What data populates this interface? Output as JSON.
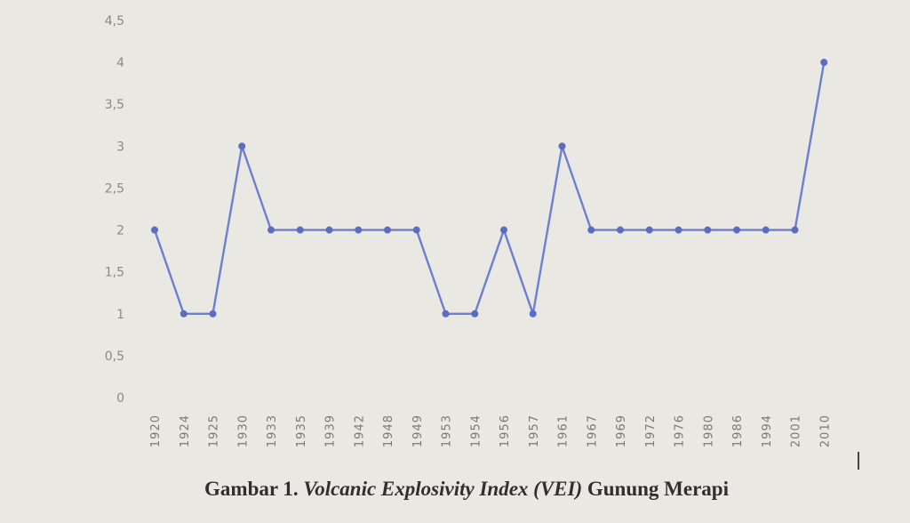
{
  "caption": {
    "prefix": "Gambar 1.",
    "italic": "Volcanic Explosivity Index (VEI)",
    "suffix": "Gunung Merapi"
  },
  "chart_data": {
    "type": "line",
    "title": "",
    "xlabel": "",
    "ylabel": "",
    "ylim": [
      0,
      4.5
    ],
    "yticks": [
      "0",
      "0,5",
      "1",
      "1,5",
      "2",
      "2,5",
      "3",
      "3,5",
      "4",
      "4,5"
    ],
    "yticks_values": [
      0,
      0.5,
      1,
      1.5,
      2,
      2.5,
      3,
      3.5,
      4,
      4.5
    ],
    "categories": [
      "1920",
      "1924",
      "1925",
      "1930",
      "1933",
      "1935",
      "1939",
      "1942",
      "1948",
      "1949",
      "1953",
      "1954",
      "1956",
      "1957",
      "1961",
      "1967",
      "1969",
      "1972",
      "1976",
      "1980",
      "1986",
      "1994",
      "2001",
      "2010"
    ],
    "values": [
      2,
      1,
      1,
      3,
      2,
      2,
      2,
      2,
      2,
      2,
      1,
      1,
      2,
      1,
      3,
      2,
      2,
      2,
      2,
      2,
      2,
      2,
      2,
      4
    ],
    "grid": false,
    "legend": "none",
    "line_color": "#6d7fd1"
  }
}
